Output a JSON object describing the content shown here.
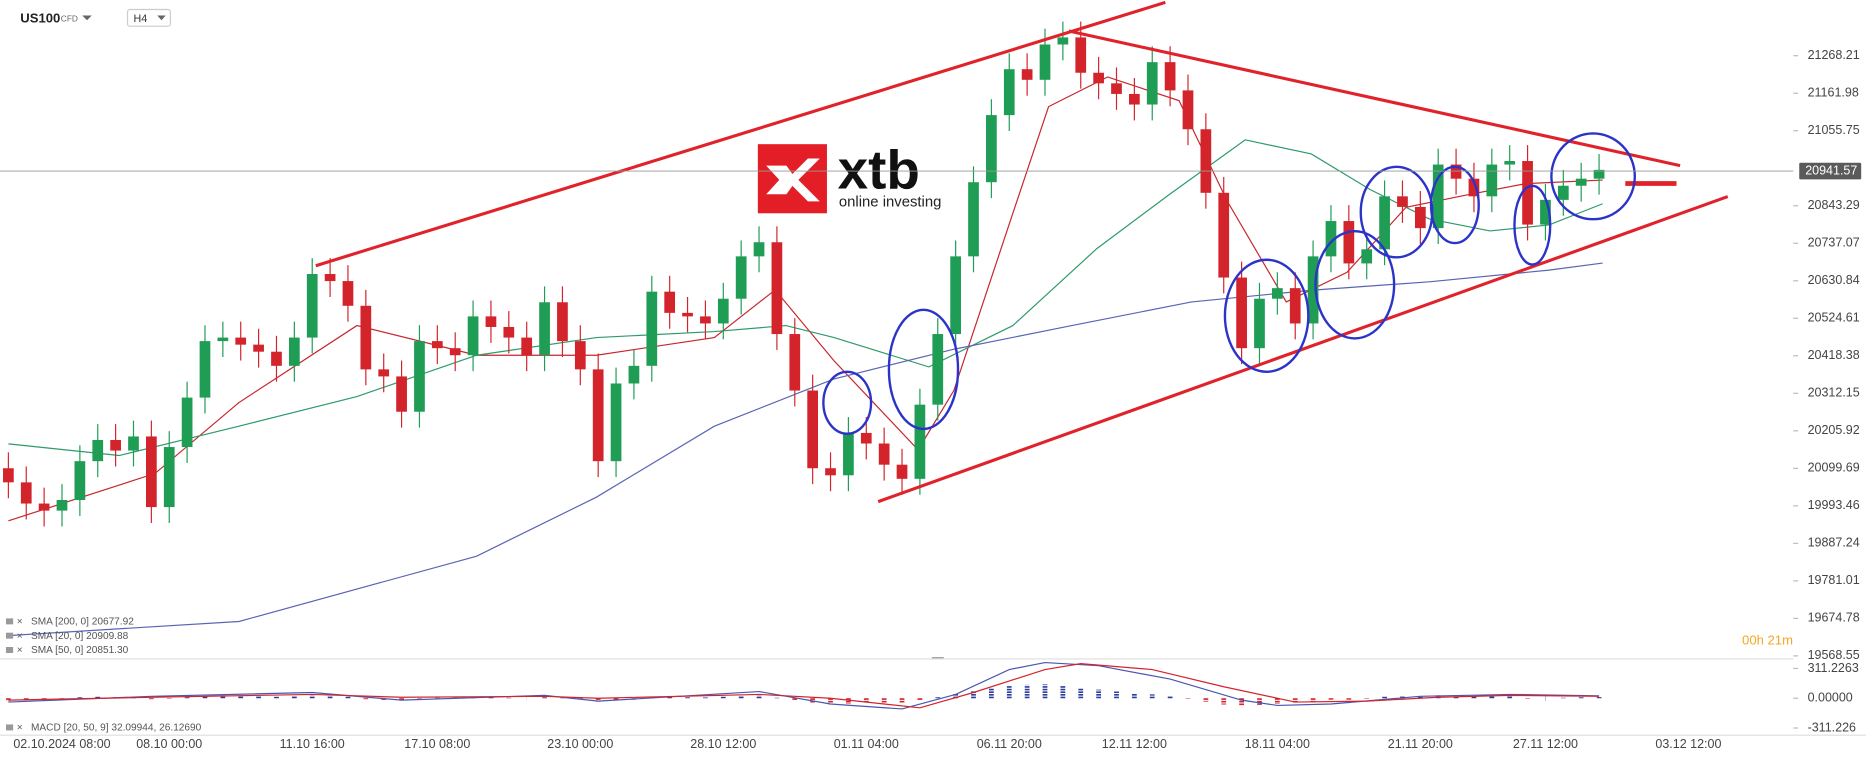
{
  "chart_data": [
    {
      "type": "candlestick",
      "symbol": "US100",
      "instrument_type": "CFD",
      "timeframe": "H4",
      "up_color": "#1f9d55",
      "down_color": "#d3242c",
      "categories": [
        null,
        null,
        null,
        "02.10.2024  08:00",
        null,
        null,
        null,
        null,
        null,
        "08.10  00:00",
        null,
        null,
        null,
        null,
        null,
        null,
        null,
        "11.10  16:00",
        null,
        null,
        null,
        null,
        null,
        null,
        "17.10  08:00",
        null,
        null,
        null,
        null,
        null,
        null,
        null,
        "23.10  00:00",
        null,
        null,
        null,
        null,
        null,
        null,
        null,
        "28.10  12:00",
        null,
        null,
        null,
        null,
        null,
        null,
        null,
        "01.11  04:00",
        null,
        null,
        null,
        null,
        null,
        null,
        null,
        "06.11  20:00",
        null,
        null,
        null,
        null,
        null,
        null,
        "12.11  12:00",
        null,
        null,
        null,
        null,
        null,
        null,
        null,
        "18.11  04:00",
        null,
        null,
        null,
        null,
        null,
        null,
        null,
        "21.11  20:00",
        null,
        null,
        null,
        null,
        null,
        null,
        "27.11  12:00",
        null,
        null,
        null,
        null,
        null,
        null,
        null,
        "03.12  12:00",
        null
      ],
      "open": [
        20100,
        20060,
        20000,
        19980,
        20010,
        20120,
        20180,
        20150,
        20190,
        19990,
        20160,
        20300,
        20460,
        20470,
        20450,
        20430,
        20390,
        20470,
        20650,
        20630,
        20560,
        20380,
        20360,
        20260,
        20460,
        20440,
        20420,
        20530,
        20500,
        20470,
        20420,
        20570,
        20460,
        20380,
        20120,
        20340,
        20390,
        20600,
        20540,
        20530,
        20510,
        20580,
        20700,
        20740,
        20480,
        20320,
        20100,
        20080,
        20200,
        20170,
        20110,
        20070,
        20280,
        20480,
        20700,
        20910,
        21100,
        21230,
        21200,
        21300,
        21320,
        21220,
        21190,
        21160,
        21130,
        21250,
        21170,
        21060,
        20880,
        20640,
        20440,
        20580,
        20610,
        20510,
        20700,
        20800,
        20680,
        20720,
        20870,
        20840,
        20780,
        20960,
        20920,
        20870,
        20960,
        20970,
        20790,
        20860,
        20900,
        20920,
        null,
        null,
        null,
        null,
        null,
        null
      ],
      "high": [
        20145,
        20105,
        20045,
        20055,
        20165,
        20225,
        20225,
        20235,
        20235,
        20205,
        20345,
        20505,
        20515,
        20515,
        20495,
        20475,
        20515,
        20695,
        20695,
        20675,
        20605,
        20425,
        20405,
        20505,
        20505,
        20485,
        20575,
        20575,
        20545,
        20515,
        20615,
        20615,
        20505,
        20425,
        20385,
        20435,
        20645,
        20645,
        20585,
        20575,
        20625,
        20745,
        20785,
        20785,
        20525,
        20365,
        20145,
        20245,
        20245,
        20215,
        20155,
        20325,
        20525,
        20745,
        20955,
        21145,
        21275,
        21275,
        21345,
        21365,
        21365,
        21265,
        21235,
        21205,
        21295,
        21295,
        21215,
        21105,
        20925,
        20685,
        20625,
        20655,
        20655,
        20745,
        20845,
        20845,
        20765,
        20915,
        20915,
        20885,
        21005,
        21005,
        20965,
        21005,
        21015,
        21015,
        20905,
        20945,
        20965,
        20990,
        null,
        null,
        null,
        null,
        null,
        null
      ],
      "low": [
        20015,
        19955,
        19935,
        19935,
        19965,
        20075,
        20105,
        20105,
        19945,
        19945,
        20115,
        20255,
        20415,
        20405,
        20385,
        20345,
        20345,
        20425,
        20585,
        20515,
        20335,
        20315,
        20215,
        20215,
        20395,
        20375,
        20375,
        20455,
        20425,
        20375,
        20375,
        20415,
        20335,
        20075,
        20075,
        20295,
        20345,
        20495,
        20485,
        20465,
        20465,
        20535,
        20655,
        20435,
        20275,
        20055,
        20035,
        20035,
        20125,
        20065,
        20025,
        20025,
        20235,
        20435,
        20655,
        20865,
        21055,
        21155,
        21155,
        21255,
        21175,
        21145,
        21115,
        21085,
        21085,
        21125,
        21015,
        20835,
        20595,
        20395,
        20395,
        20535,
        20465,
        20465,
        20655,
        20635,
        20635,
        20675,
        20795,
        20735,
        20735,
        20875,
        20825,
        20825,
        20915,
        20745,
        20745,
        20815,
        20855,
        20875,
        null,
        null,
        null,
        null,
        null,
        null
      ],
      "close": [
        20060,
        20000,
        19980,
        20010,
        20120,
        20180,
        20150,
        20190,
        19990,
        20160,
        20300,
        20460,
        20470,
        20450,
        20430,
        20390,
        20470,
        20650,
        20630,
        20560,
        20380,
        20360,
        20260,
        20460,
        20440,
        20420,
        20530,
        20500,
        20470,
        20420,
        20570,
        20460,
        20380,
        20120,
        20340,
        20390,
        20600,
        20540,
        20530,
        20510,
        20580,
        20700,
        20740,
        20480,
        20320,
        20100,
        20080,
        20200,
        20170,
        20110,
        20070,
        20280,
        20480,
        20700,
        20910,
        21100,
        21230,
        21200,
        21300,
        21320,
        21220,
        21190,
        21160,
        21130,
        21250,
        21170,
        21060,
        20880,
        20640,
        20440,
        20580,
        20610,
        20510,
        20700,
        20800,
        20680,
        20720,
        20870,
        20840,
        20780,
        20960,
        20920,
        20870,
        20960,
        20970,
        20790,
        20860,
        20900,
        20920,
        20945,
        null,
        null,
        null,
        null,
        null,
        null
      ],
      "ylim": [
        19560,
        21426
      ],
      "yticks": [
        21268.21,
        21161.98,
        21055.75,
        20843.29,
        20737.07,
        20630.84,
        20524.61,
        20418.38,
        20312.15,
        20205.92,
        20099.69,
        19993.46,
        19887.24,
        19781.01,
        19674.78,
        19568.55
      ],
      "last_price": 20941.57,
      "series": [
        {
          "name": "SMA [20, 0]",
          "color": "#c8252c",
          "x": [
            0,
            8.2,
            12.9,
            19.5,
            26.2,
            32.9,
            39.5,
            42.9,
            46.2,
            50.9,
            52.9,
            56.2,
            58.2,
            61.5,
            65.5,
            68.2,
            71.5,
            74.9,
            78.2,
            81.5,
            84.9,
            89.2
          ],
          "values": [
            19951,
            20085,
            20286,
            20504,
            20420,
            20420,
            20470,
            20605,
            20404,
            20152,
            20320,
            20822,
            21124,
            21208,
            21141,
            20856,
            20571,
            20655,
            20839,
            20873,
            20906,
            20916
          ]
        },
        {
          "name": "SMA [50, 0]",
          "color": "#2e9a6a",
          "x": [
            0,
            6.2,
            12.9,
            19.5,
            26.2,
            32.9,
            39.5,
            43.5,
            46.2,
            51.5,
            56.2,
            60.9,
            64.9,
            69.2,
            72.9,
            76.2,
            79.5,
            82.9,
            86.2,
            89.2
          ],
          "values": [
            20169,
            20136,
            20219,
            20303,
            20420,
            20470,
            20487,
            20504,
            20470,
            20387,
            20504,
            20722,
            20873,
            21030,
            20990,
            20889,
            20806,
            20772,
            20789,
            20849
          ]
        },
        {
          "name": "SMA [200, 0]",
          "color": "#5a64b4",
          "x": [
            0,
            12.9,
            26.2,
            32.9,
            39.5,
            46.2,
            52.9,
            59.5,
            66.2,
            72.9,
            79.5,
            86.2,
            89.2
          ],
          "values": [
            19626,
            19666,
            19851,
            20018,
            20219,
            20353,
            20437,
            20504,
            20571,
            20604,
            20628,
            20661,
            20681
          ]
        }
      ],
      "legend": [
        "SMA [200, 0] 20677.92",
        "SMA [20, 0] 20909.88",
        "SMA [50, 0] 20851.30"
      ],
      "countdown": "00h 21m",
      "watermark": {
        "brand": "xtb",
        "tagline": "online investing"
      }
    },
    {
      "type": "macd",
      "legend": "MACD [20, 50, 9] 32.09944, 26.12690",
      "up_color": "#2b3c9e",
      "down_color": "#d3242c",
      "histogram": [
        -30,
        -25,
        -20,
        -15,
        10,
        15,
        12,
        8,
        -10,
        -5,
        10,
        25,
        30,
        25,
        20,
        15,
        18,
        30,
        25,
        15,
        -10,
        -20,
        -25,
        -5,
        5,
        5,
        12,
        10,
        5,
        0,
        10,
        5,
        -10,
        -35,
        -25,
        -15,
        10,
        12,
        10,
        8,
        15,
        25,
        30,
        5,
        -25,
        -55,
        -65,
        -60,
        -55,
        -50,
        -45,
        -20,
        10,
        45,
        80,
        110,
        135,
        140,
        145,
        135,
        110,
        90,
        70,
        50,
        40,
        20,
        -5,
        -35,
        -65,
        -80,
        -70,
        -60,
        -55,
        -35,
        -15,
        -15,
        -5,
        15,
        20,
        15,
        30,
        30,
        20,
        25,
        25,
        -5,
        0,
        5,
        10,
        12,
        null,
        null,
        null,
        null,
        null,
        null
      ],
      "ylim": [
        -386,
        411
      ],
      "yticks": [
        311.2263,
        {
          "value": 0,
          "label": "0.00000"
        },
        -311.226
      ],
      "series": [
        {
          "name": "MACD",
          "color": "#4a56b0",
          "x": [
            0,
            8,
            17,
            22,
            30,
            33,
            42,
            46,
            50,
            53,
            56,
            58,
            61,
            65,
            69,
            71,
            74,
            79,
            84,
            89
          ],
          "values": [
            -40,
            20,
            60,
            -20,
            30,
            -30,
            70,
            -60,
            -112,
            40,
            300,
            373,
            340,
            200,
            -20,
            -75,
            -60,
            20,
            40,
            25
          ]
        },
        {
          "name": "Signal",
          "color": "#d3242c",
          "x": [
            0,
            8,
            17,
            22,
            30,
            33,
            42,
            46,
            51,
            54,
            58,
            60,
            64,
            68,
            72,
            76,
            80,
            84,
            89
          ],
          "values": [
            -20,
            10,
            40,
            10,
            20,
            0,
            40,
            0,
            -100,
            60,
            300,
            362,
            300,
            120,
            -40,
            -30,
            10,
            30,
            20
          ]
        }
      ]
    }
  ]
}
